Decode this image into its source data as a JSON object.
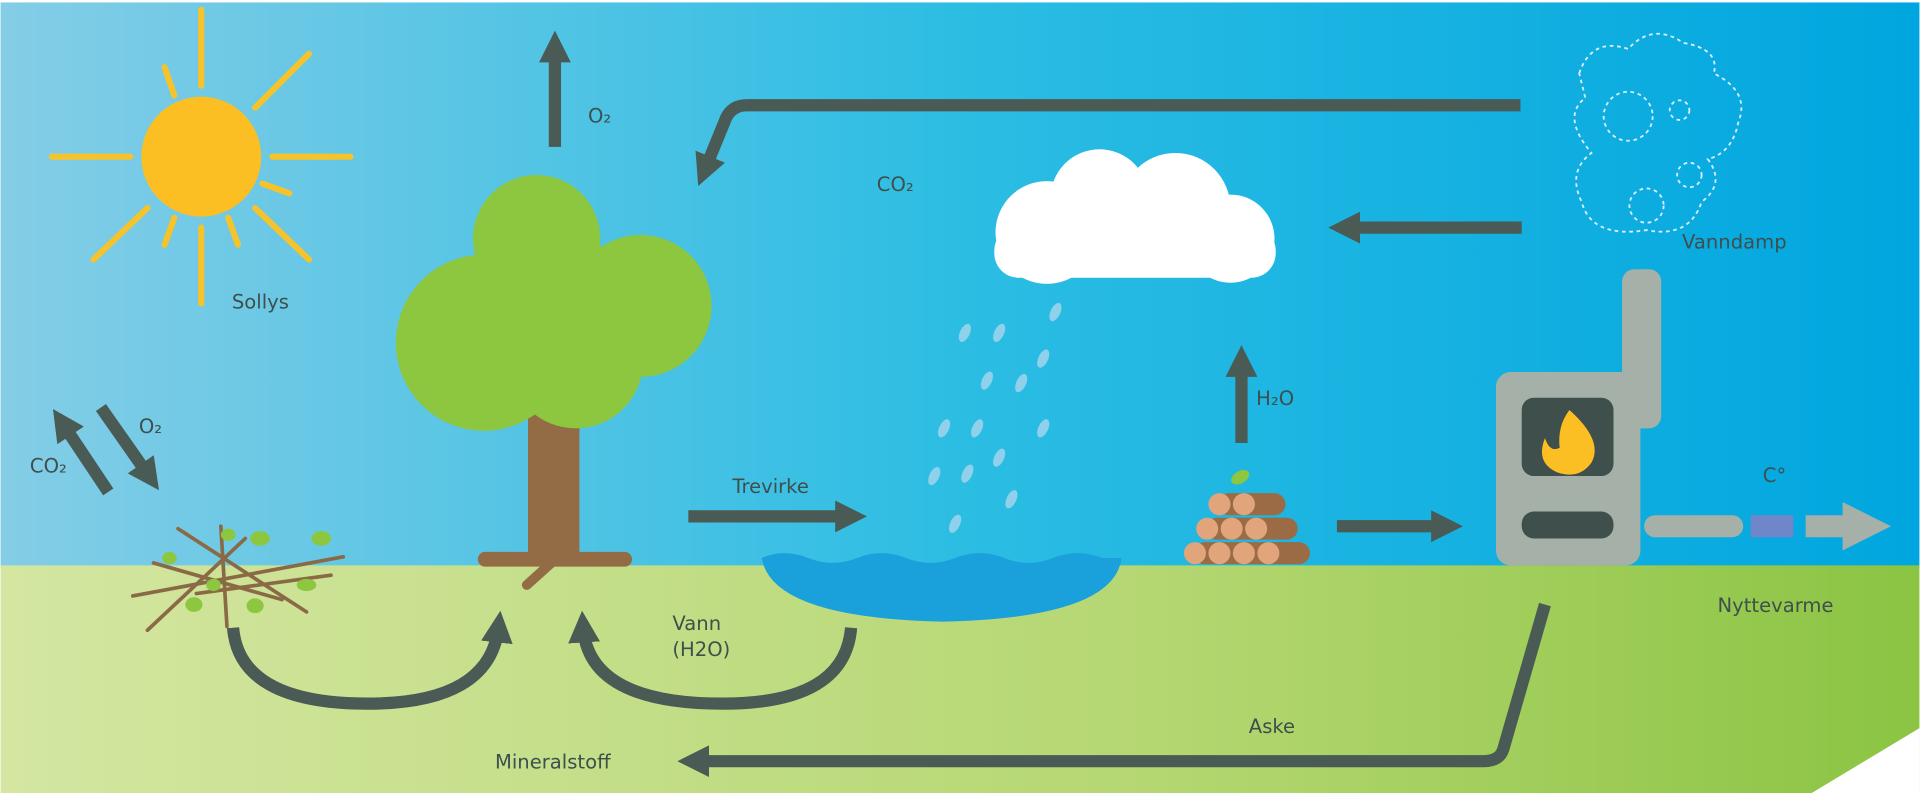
{
  "labels": {
    "tree_oxygen": "O₂",
    "carbon_dioxide": "CO₂",
    "sunlight": "Sollys",
    "left_oxygen": "O₂",
    "left_carbon_dioxide": "CO₂",
    "wood": "Trevirke",
    "water_vapor_up": "H₂O",
    "vapor": "Vanndamp",
    "heat_symbol": "C°",
    "useful_heat": "Nyttevarme",
    "ash": "Aske",
    "minerals": "Mineralstoff",
    "water": [
      "Vann",
      "(H2O)"
    ]
  }
}
